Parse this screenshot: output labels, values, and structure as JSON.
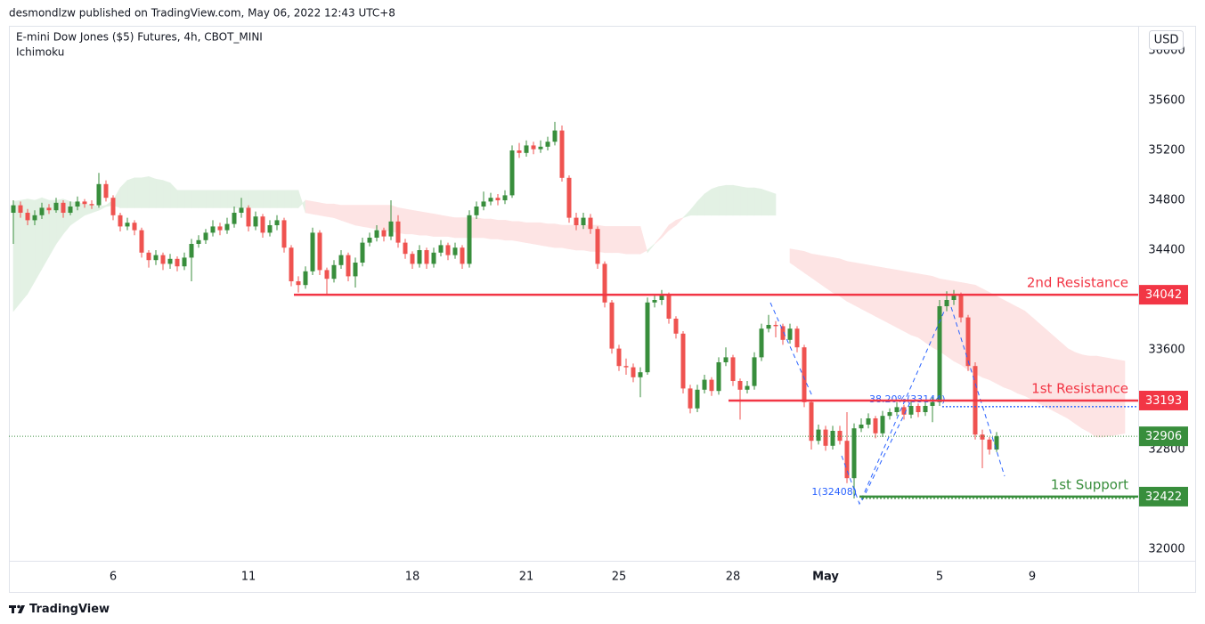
{
  "chart_data": {
    "type": "candlestick",
    "publisher": "desmondlzw published on TradingView.com, May 06, 2022 12:43 UTC+8",
    "title": "E-mini Dow Jones ($5) Futures, 4h, CBOT_MINI",
    "indicator": "Ichimoku",
    "currency": "USD",
    "brand": "TradingView",
    "up_color": "#388e3c",
    "down_color": "#ef5350",
    "cloud_up_color": "#e3f1e4",
    "cloud_down_color": "#fde4e4",
    "grid": false,
    "ylim": [
      31907,
      36193
    ],
    "yticks": [
      32000,
      32800,
      33600,
      34400,
      34800,
      35200,
      35600,
      36000
    ],
    "categories": [
      null,
      null,
      null,
      null,
      null,
      null,
      null,
      null,
      null,
      null,
      null,
      null,
      null,
      null,
      "6",
      null,
      null,
      null,
      null,
      null,
      null,
      null,
      null,
      null,
      null,
      null,
      null,
      null,
      null,
      null,
      null,
      null,
      null,
      "11",
      null,
      null,
      null,
      null,
      null,
      null,
      null,
      null,
      null,
      null,
      null,
      null,
      null,
      null,
      null,
      null,
      null,
      null,
      null,
      null,
      null,
      null,
      "18",
      null,
      null,
      null,
      null,
      null,
      null,
      null,
      null,
      null,
      null,
      null,
      null,
      null,
      null,
      null,
      "21",
      null,
      null,
      null,
      null,
      null,
      null,
      null,
      null,
      null,
      null,
      null,
      null,
      "25",
      null,
      null,
      null,
      null,
      null,
      null,
      null,
      null,
      null,
      null,
      null,
      null,
      null,
      null,
      null,
      "28",
      null,
      null,
      null,
      null,
      null,
      null,
      null,
      null,
      null,
      null,
      null,
      null,
      "May",
      null,
      null,
      null,
      null,
      null,
      null,
      null,
      null,
      null,
      null,
      null,
      null,
      null,
      null,
      null,
      "5",
      null,
      null,
      null,
      null,
      null,
      null,
      null,
      null,
      null,
      null,
      null,
      null,
      "9",
      null,
      null,
      null,
      null,
      null,
      null,
      null,
      null,
      null,
      null,
      null,
      null,
      null
    ],
    "candles": [
      [
        34700,
        34800,
        34450,
        34760
      ],
      [
        34760,
        34790,
        34660,
        34700
      ],
      [
        34700,
        34730,
        34600,
        34640
      ],
      [
        34640,
        34720,
        34600,
        34680
      ],
      [
        34680,
        34780,
        34650,
        34740
      ],
      [
        34740,
        34770,
        34690,
        34720
      ],
      [
        34720,
        34820,
        34700,
        34780
      ],
      [
        34780,
        34800,
        34660,
        34700
      ],
      [
        34700,
        34790,
        34680,
        34750
      ],
      [
        34750,
        34830,
        34720,
        34790
      ],
      [
        34790,
        34810,
        34740,
        34770
      ],
      [
        34770,
        34800,
        34730,
        34760
      ],
      [
        34760,
        35020,
        34740,
        34930
      ],
      [
        34930,
        34960,
        34790,
        34820
      ],
      [
        34820,
        34840,
        34640,
        34680
      ],
      [
        34680,
        34700,
        34550,
        34590
      ],
      [
        34590,
        34660,
        34560,
        34620
      ],
      [
        34620,
        34640,
        34520,
        34560
      ],
      [
        34560,
        34580,
        34340,
        34380
      ],
      [
        34380,
        34400,
        34260,
        34320
      ],
      [
        34320,
        34400,
        34280,
        34360
      ],
      [
        34360,
        34380,
        34240,
        34290
      ],
      [
        34290,
        34370,
        34250,
        34330
      ],
      [
        34330,
        34350,
        34230,
        34270
      ],
      [
        34270,
        34380,
        34240,
        34340
      ],
      [
        34340,
        34490,
        34150,
        34450
      ],
      [
        34450,
        34520,
        34420,
        34480
      ],
      [
        34480,
        34570,
        34450,
        34540
      ],
      [
        34540,
        34640,
        34510,
        34590
      ],
      [
        34590,
        34620,
        34520,
        34560
      ],
      [
        34560,
        34660,
        34530,
        34610
      ],
      [
        34610,
        34750,
        34580,
        34700
      ],
      [
        34700,
        34820,
        34660,
        34740
      ],
      [
        34740,
        34760,
        34550,
        34590
      ],
      [
        34590,
        34710,
        34560,
        34670
      ],
      [
        34670,
        34690,
        34500,
        34540
      ],
      [
        34540,
        34640,
        34510,
        34600
      ],
      [
        34600,
        34680,
        34560,
        34640
      ],
      [
        34640,
        34660,
        34380,
        34420
      ],
      [
        34420,
        34440,
        34110,
        34150
      ],
      [
        34150,
        34190,
        34060,
        34120
      ],
      [
        34120,
        34270,
        34090,
        34230
      ],
      [
        34230,
        34580,
        34200,
        34540
      ],
      [
        34540,
        34560,
        34200,
        34240
      ],
      [
        34240,
        34260,
        34040,
        34170
      ],
      [
        34170,
        34320,
        34140,
        34280
      ],
      [
        34280,
        34400,
        34250,
        34360
      ],
      [
        34360,
        34380,
        34150,
        34190
      ],
      [
        34190,
        34340,
        34100,
        34300
      ],
      [
        34300,
        34500,
        34270,
        34460
      ],
      [
        34460,
        34540,
        34430,
        34500
      ],
      [
        34500,
        34600,
        34470,
        34560
      ],
      [
        34560,
        34580,
        34470,
        34510
      ],
      [
        34510,
        34800,
        34480,
        34630
      ],
      [
        34630,
        34680,
        34420,
        34460
      ],
      [
        34460,
        34490,
        34330,
        34370
      ],
      [
        34370,
        34390,
        34250,
        34290
      ],
      [
        34290,
        34440,
        34260,
        34400
      ],
      [
        34400,
        34420,
        34250,
        34290
      ],
      [
        34290,
        34420,
        34260,
        34380
      ],
      [
        34380,
        34480,
        34350,
        34440
      ],
      [
        34440,
        34460,
        34320,
        34360
      ],
      [
        34360,
        34460,
        34330,
        34420
      ],
      [
        34420,
        34440,
        34250,
        34290
      ],
      [
        34290,
        34720,
        34260,
        34680
      ],
      [
        34680,
        34790,
        34650,
        34750
      ],
      [
        34750,
        34870,
        34720,
        34790
      ],
      [
        34790,
        34860,
        34760,
        34820
      ],
      [
        34820,
        34850,
        34760,
        34800
      ],
      [
        34800,
        34880,
        34770,
        34840
      ],
      [
        34840,
        35240,
        34820,
        35200
      ],
      [
        35200,
        35260,
        35140,
        35180
      ],
      [
        35180,
        35280,
        35150,
        35240
      ],
      [
        35240,
        35270,
        35170,
        35210
      ],
      [
        35210,
        35280,
        35180,
        35230
      ],
      [
        35230,
        35310,
        35200,
        35270
      ],
      [
        35270,
        35430,
        35240,
        35360
      ],
      [
        35360,
        35400,
        34950,
        34980
      ],
      [
        34980,
        35000,
        34620,
        34660
      ],
      [
        34660,
        34700,
        34560,
        34600
      ],
      [
        34600,
        34700,
        34570,
        34660
      ],
      [
        34660,
        34690,
        34530,
        34570
      ],
      [
        34570,
        34590,
        34250,
        34290
      ],
      [
        34290,
        34310,
        33940,
        33980
      ],
      [
        33980,
        34000,
        33570,
        33610
      ],
      [
        33610,
        33640,
        33430,
        33470
      ],
      [
        33470,
        33530,
        33400,
        33460
      ],
      [
        33460,
        33490,
        33340,
        33380
      ],
      [
        33380,
        33460,
        33220,
        33420
      ],
      [
        33420,
        34020,
        33400,
        33980
      ],
      [
        33980,
        34050,
        33940,
        34000
      ],
      [
        34000,
        34080,
        33960,
        34040
      ],
      [
        34040,
        34060,
        33810,
        33850
      ],
      [
        33850,
        33870,
        33690,
        33730
      ],
      [
        33730,
        33750,
        33250,
        33290
      ],
      [
        33290,
        33320,
        33090,
        33130
      ],
      [
        33130,
        33320,
        33100,
        33280
      ],
      [
        33280,
        33400,
        33250,
        33360
      ],
      [
        33360,
        33380,
        33230,
        33270
      ],
      [
        33270,
        33540,
        33240,
        33500
      ],
      [
        33500,
        33620,
        33470,
        33540
      ],
      [
        33540,
        33560,
        33310,
        33350
      ],
      [
        33350,
        33370,
        33040,
        33280
      ],
      [
        33280,
        33350,
        33250,
        33310
      ],
      [
        33310,
        33580,
        33280,
        33540
      ],
      [
        33540,
        33810,
        33510,
        33770
      ],
      [
        33770,
        33880,
        33740,
        33800
      ],
      [
        33800,
        33830,
        33700,
        33790
      ],
      [
        33790,
        33810,
        33640,
        33680
      ],
      [
        33680,
        33810,
        33650,
        33770
      ],
      [
        33770,
        33790,
        33580,
        33620
      ],
      [
        33620,
        33640,
        33140,
        33180
      ],
      [
        33180,
        33200,
        32800,
        32870
      ],
      [
        32870,
        33000,
        32840,
        32960
      ],
      [
        32960,
        32990,
        32790,
        32830
      ],
      [
        32830,
        32990,
        32800,
        32950
      ],
      [
        32950,
        32990,
        32840,
        32870
      ],
      [
        32870,
        33100,
        32530,
        32570
      ],
      [
        32570,
        33010,
        32408,
        32970
      ],
      [
        32970,
        33050,
        32940,
        33000
      ],
      [
        33000,
        33090,
        32970,
        33050
      ],
      [
        33050,
        33070,
        32890,
        32930
      ],
      [
        32930,
        33110,
        32900,
        33070
      ],
      [
        33070,
        33130,
        33040,
        33100
      ],
      [
        33100,
        33180,
        33070,
        33140
      ],
      [
        33140,
        33160,
        33040,
        33080
      ],
      [
        33080,
        33190,
        33050,
        33150
      ],
      [
        33150,
        33170,
        33060,
        33100
      ],
      [
        33100,
        33190,
        33070,
        33150
      ],
      [
        33150,
        33220,
        33020,
        33180
      ],
      [
        33180,
        34000,
        33150,
        33950
      ],
      [
        33950,
        34070,
        33910,
        34000
      ],
      [
        34000,
        34080,
        33960,
        34040
      ],
      [
        34040,
        34060,
        33820,
        33860
      ],
      [
        33860,
        33880,
        33430,
        33470
      ],
      [
        33470,
        33500,
        32880,
        32920
      ],
      [
        32920,
        32960,
        32650,
        32880
      ],
      [
        32880,
        32900,
        32760,
        32800
      ],
      [
        32800,
        32940,
        32780,
        32906
      ],
      null,
      null,
      null,
      null,
      null,
      null,
      null,
      null,
      null,
      null,
      null,
      null,
      null,
      null,
      null,
      null,
      null,
      null
    ],
    "span_a": [
      34790,
      34800,
      34810,
      34800,
      34820,
      34800,
      34800,
      34810,
      34790,
      34780,
      34770,
      34760,
      34750,
      34760,
      34800,
      34900,
      34960,
      34980,
      34980,
      34990,
      34970,
      34960,
      34940,
      34880,
      34880,
      34880,
      34880,
      34880,
      34880,
      34880,
      34880,
      34880,
      34880,
      34880,
      34880,
      34880,
      34880,
      34880,
      34880,
      34880,
      34880,
      34700,
      34690,
      34680,
      34670,
      34660,
      34640,
      34620,
      34600,
      34590,
      34580,
      34570,
      34560,
      34550,
      34540,
      34530,
      34530,
      34520,
      34520,
      34510,
      34510,
      34510,
      34500,
      34500,
      34500,
      34500,
      34500,
      34490,
      34490,
      34480,
      34480,
      34470,
      34460,
      34450,
      34440,
      34430,
      34420,
      34420,
      34410,
      34400,
      34400,
      34390,
      34390,
      34380,
      34380,
      34380,
      34370,
      34370,
      34370,
      34400,
      34450,
      34500,
      34560,
      34600,
      34660,
      34720,
      34790,
      34850,
      34890,
      34910,
      34920,
      34920,
      34910,
      34900,
      34900,
      34890,
      34870,
      34850,
      null,
      34300,
      34260,
      34220,
      34180,
      34140,
      34100,
      34060,
      34030,
      33990,
      33960,
      33930,
      33900,
      33870,
      33840,
      33810,
      33780,
      33750,
      33720,
      33700,
      33660,
      33620,
      33590,
      33550,
      33510,
      33480,
      33440,
      33410,
      33380,
      33360,
      33330,
      33300,
      33280,
      33250,
      33230,
      33200,
      33170,
      33140,
      33110,
      33080,
      33050,
      33010,
      32970,
      32940,
      32900,
      32900,
      32910,
      32920,
      32930
    ],
    "span_b": [
      33910,
      33980,
      34050,
      34150,
      34250,
      34350,
      34450,
      34530,
      34600,
      34640,
      34680,
      34700,
      34720,
      34750,
      34760,
      34740,
      34740,
      34740,
      34740,
      34740,
      34740,
      34740,
      34740,
      34740,
      34740,
      34740,
      34740,
      34740,
      34740,
      34740,
      34740,
      34740,
      34740,
      34740,
      34740,
      34740,
      34740,
      34740,
      34740,
      34740,
      34740,
      34800,
      34790,
      34780,
      34770,
      34770,
      34760,
      34760,
      34760,
      34760,
      34760,
      34760,
      34760,
      34760,
      34740,
      34730,
      34720,
      34710,
      34700,
      34690,
      34680,
      34670,
      34660,
      34660,
      34660,
      34660,
      34650,
      34650,
      34640,
      34640,
      34630,
      34630,
      34620,
      34620,
      34620,
      34610,
      34610,
      34600,
      34600,
      34600,
      34600,
      34600,
      34600,
      34590,
      34590,
      34590,
      34590,
      34590,
      34590,
      34380,
      34450,
      34520,
      34600,
      34640,
      34660,
      34680,
      34680,
      34680,
      34680,
      34680,
      34680,
      34680,
      34680,
      34680,
      34680,
      34680,
      34680,
      34680,
      null,
      34410,
      34400,
      34390,
      34370,
      34360,
      34350,
      34340,
      34330,
      34310,
      34300,
      34290,
      34280,
      34270,
      34260,
      34250,
      34240,
      34230,
      34220,
      34210,
      34200,
      34190,
      34170,
      34160,
      34150,
      34140,
      34130,
      34120,
      34090,
      34060,
      34030,
      34000,
      33970,
      33940,
      33910,
      33860,
      33810,
      33760,
      33710,
      33660,
      33610,
      33580,
      33560,
      33550,
      33550,
      33540,
      33530,
      33520,
      33510
    ],
    "levels": [
      {
        "label": "2nd Resistance",
        "value": 34042,
        "color": "#f23645"
      },
      {
        "label": "1st Resistance",
        "value": 33193,
        "color": "#f23645"
      },
      {
        "label": "1st Support",
        "value": 32422,
        "color": "#388e3c"
      }
    ],
    "fib_color": "#2962ff",
    "fib": [
      {
        "label": "38.20%(33144)",
        "value": 33144
      },
      {
        "label": "1(32408)",
        "value": 32408
      }
    ]
  }
}
